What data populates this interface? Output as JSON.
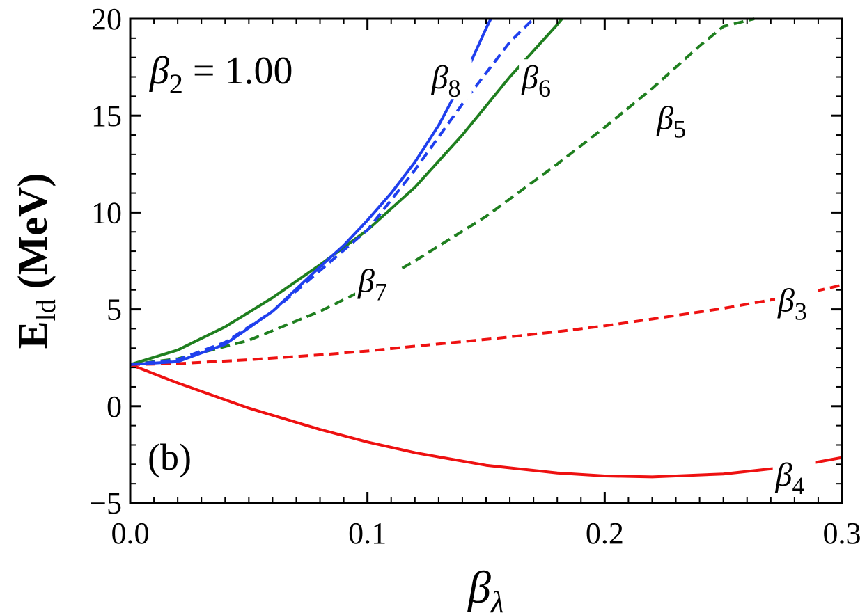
{
  "chart_data": {
    "type": "line",
    "panel_label": "(b)",
    "beta2_annotation": {
      "symbol": "β",
      "subscript": "2",
      "text": " = 1.00"
    },
    "ylabel": {
      "main": "E",
      "sub": "ld",
      "rest": " (MeV)"
    },
    "xlabel": {
      "main": "β",
      "sub": "λ"
    },
    "xlim": [
      0,
      0.3
    ],
    "ylim": [
      -5,
      20
    ],
    "xticks": [
      0.0,
      0.1,
      0.2,
      0.3
    ],
    "xtick_labels": [
      "0.0",
      "0.1",
      "0.2",
      "0.3"
    ],
    "yticks": [
      -5,
      0,
      5,
      10,
      15,
      20
    ],
    "ytick_labels": [
      "−5",
      "0",
      "5",
      "10",
      "15",
      "20"
    ],
    "grid": false,
    "series": [
      {
        "name": "β3",
        "color": "#ee1111",
        "dash": "dashed",
        "x": [
          0,
          0.02,
          0.05,
          0.08,
          0.1,
          0.12,
          0.15,
          0.18,
          0.2,
          0.22,
          0.25,
          0.28,
          0.3
        ],
        "y": [
          2.15,
          2.2,
          2.4,
          2.65,
          2.85,
          3.1,
          3.45,
          3.85,
          4.15,
          4.5,
          5.05,
          5.7,
          6.25
        ]
      },
      {
        "name": "β4",
        "color": "#ee1111",
        "dash": "solid",
        "x": [
          0,
          0.02,
          0.05,
          0.08,
          0.1,
          0.12,
          0.15,
          0.18,
          0.2,
          0.22,
          0.25,
          0.28,
          0.3
        ],
        "y": [
          2.15,
          1.2,
          -0.1,
          -1.2,
          -1.85,
          -2.4,
          -3.05,
          -3.45,
          -3.6,
          -3.65,
          -3.5,
          -3.1,
          -2.65
        ]
      },
      {
        "name": "β5",
        "color": "#1f7f1f",
        "dash": "dashed",
        "x": [
          0,
          0.02,
          0.05,
          0.08,
          0.1,
          0.12,
          0.15,
          0.18,
          0.2,
          0.22,
          0.24,
          0.25,
          0.263
        ],
        "y": [
          2.15,
          2.45,
          3.4,
          4.9,
          6.1,
          7.5,
          9.8,
          12.5,
          14.4,
          16.4,
          18.6,
          19.6,
          20
        ]
      },
      {
        "name": "β6",
        "color": "#1f7f1f",
        "dash": "solid",
        "x": [
          0,
          0.02,
          0.04,
          0.06,
          0.08,
          0.1,
          0.12,
          0.14,
          0.16,
          0.18,
          0.182
        ],
        "y": [
          2.15,
          2.9,
          4.1,
          5.6,
          7.3,
          9.1,
          11.3,
          14.0,
          17.0,
          19.7,
          20
        ]
      },
      {
        "name": "β7",
        "color": "#1f3fee",
        "dash": "dashed",
        "x": [
          0,
          0.02,
          0.04,
          0.06,
          0.08,
          0.1,
          0.12,
          0.14,
          0.16,
          0.17
        ],
        "y": [
          2.15,
          2.4,
          3.3,
          4.9,
          7.0,
          9.1,
          12.2,
          15.6,
          18.8,
          20
        ]
      },
      {
        "name": "β8",
        "color": "#1f3fee",
        "dash": "solid",
        "x": [
          0,
          0.02,
          0.04,
          0.06,
          0.08,
          0.09,
          0.1,
          0.11,
          0.12,
          0.13,
          0.14,
          0.15,
          0.152
        ],
        "y": [
          2.15,
          2.3,
          3.2,
          4.9,
          7.2,
          8.3,
          9.6,
          11.0,
          12.6,
          14.5,
          16.8,
          19.5,
          20
        ]
      }
    ],
    "series_labels": [
      {
        "name": "β8",
        "symbol": "β",
        "sub": "8",
        "x": 0.127,
        "y": 16.4
      },
      {
        "name": "β6",
        "symbol": "β",
        "sub": "6",
        "x": 0.165,
        "y": 16.4
      },
      {
        "name": "β5",
        "symbol": "β",
        "sub": "5",
        "x": 0.222,
        "y": 14.3
      },
      {
        "name": "β7",
        "symbol": "β",
        "sub": "7",
        "x": 0.096,
        "y": 5.9
      },
      {
        "name": "β3",
        "symbol": "β",
        "sub": "3",
        "x": 0.273,
        "y": 4.9
      },
      {
        "name": "β4",
        "symbol": "β",
        "sub": "4",
        "x": 0.272,
        "y": -4.1
      }
    ]
  }
}
